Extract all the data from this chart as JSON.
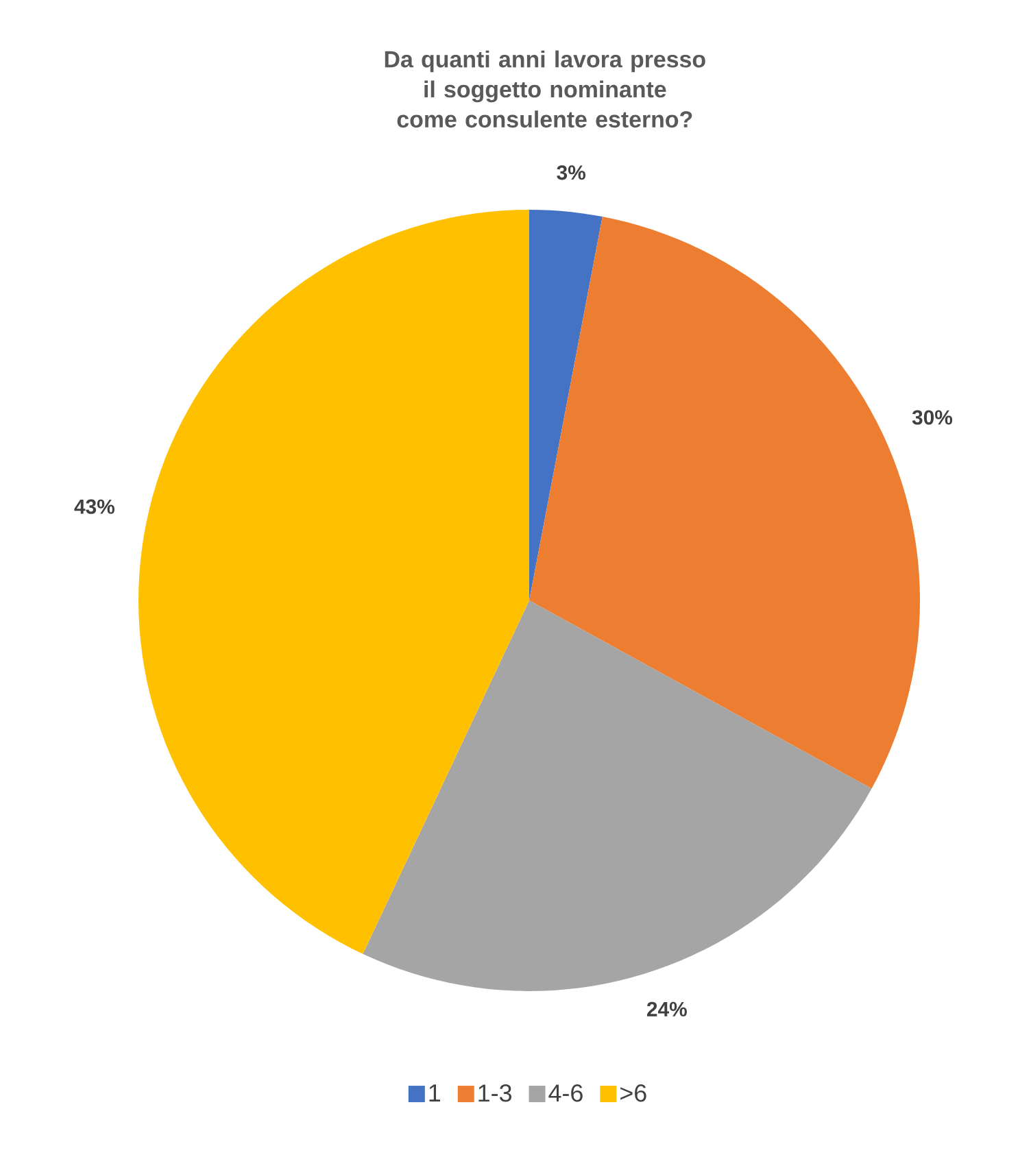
{
  "chart_data": {
    "type": "pie",
    "title": "Da quanti anni lavora presso il soggetto nominante come consulente esterno?",
    "categories": [
      "1",
      "1-3",
      "4-6",
      ">6"
    ],
    "values": [
      3,
      30,
      24,
      43
    ],
    "colors": [
      "#4472c4",
      "#ed7d31",
      "#a5a5a5",
      "#ffc000"
    ],
    "value_labels": [
      "3%",
      "30%",
      "24%",
      "43%"
    ],
    "legend": "bottom"
  }
}
